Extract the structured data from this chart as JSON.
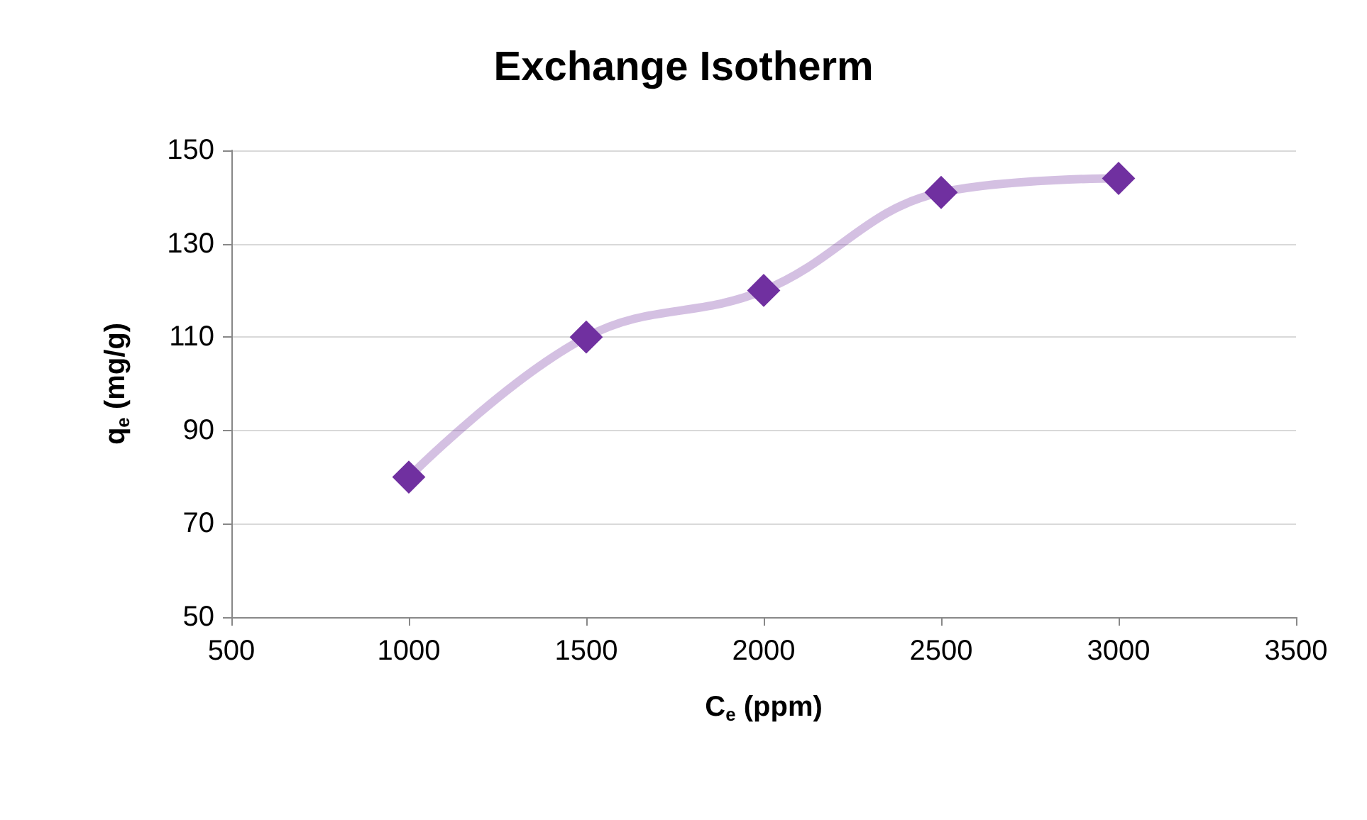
{
  "chart_data": {
    "type": "line",
    "title": "Exchange Isotherm",
    "xlabel": "C$_{e}$ (ppm)",
    "ylabel": "q$_{e}$ (mg/g)",
    "x": [
      1000,
      1500,
      2000,
      2500,
      3000
    ],
    "series": [
      {
        "color": "#7030a0",
        "values": [
          80,
          110,
          120,
          141,
          144
        ]
      }
    ],
    "xlim": [
      500,
      3500
    ],
    "xticks": [
      500,
      1000,
      1500,
      2000,
      2500,
      3000,
      3500
    ],
    "ylim": [
      50,
      150
    ],
    "yticks": [
      50,
      70,
      90,
      110,
      130,
      150
    ],
    "grid": "y",
    "marker": "diamond",
    "line_style": "solid"
  }
}
